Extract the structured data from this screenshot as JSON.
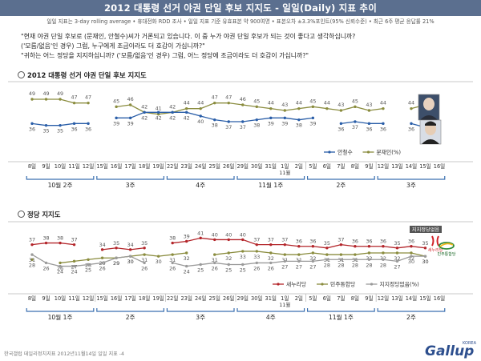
{
  "header": {
    "title": "2012 대통령 선거 야권 단일 후보 지지도 - 일일(Daily) 지표 추이",
    "subtitle": "일일 지표는 3-day rolling average  •  휴대전화 RDD 조사  •  일일 지표 기준 유효표본 약 900여명  •  표본오차 ±3.3%포인트(95% 신뢰수준)  •  최근 6주 평균 응답률 21%"
  },
  "questions": [
    "\"현재 야권 단일 후보로 (문재인, 안철수)씨가 거론되고 있습니다. 이 중 누가 야권 단일 후보가 되는 것이 좋다고 생각하십니까?",
    "('모름/없음'인 경우) 그럼, 누구에게 조금이라도 더 호감이 가십니까?\"",
    "\"귀하는 어느 정당을 지지하십니까? ('모름/없음'인 경우) 그럼, 어느 정당에 조금이라도 더 호감이 가십니까?\""
  ],
  "footer": {
    "text": "한국갤럽 데일리정치지표 2012년11월14일 일일 지표 -4"
  },
  "logo": {
    "text": "Gallup",
    "korea": "KOREA"
  },
  "colors": {
    "title_bg": "#5b6f8f",
    "blue": "#2a5ea8",
    "olive": "#8a8c3e",
    "red": "#b3252a",
    "gray_line": "#9a9a9a",
    "axis_blue": "#3a6fb0"
  },
  "icons": {
    "moon_photo": "candidate-moon-photo-icon",
    "ahn_photo": "candidate-ahn-photo-icon",
    "saenuri_logo": "saenuri-party-logo-icon",
    "democratic_logo": "democratic-united-party-logo-icon",
    "section_bullet": "circle-bullet-icon"
  },
  "chart_data": [
    {
      "type": "line",
      "title": "2012 대통령 선거 야권 단일 후보 지지도",
      "x": [
        "8일",
        "9일",
        "10일",
        "11일",
        "12일",
        "15일",
        "16일",
        "17일",
        "18일",
        "19일",
        "22일",
        "23일",
        "24일",
        "25일",
        "26일",
        "29일",
        "30일",
        "31일",
        "1일",
        "2일",
        "5일",
        "6일",
        "7일",
        "8일",
        "9일",
        "12일",
        "13일",
        "14일",
        "15일",
        "16일"
      ],
      "x_note": "11월",
      "x_note_under": "1일",
      "week_groups": [
        "10월 2주",
        "3주",
        "4주",
        "11월 1주",
        "2주",
        "3주"
      ],
      "week_spans": [
        5,
        5,
        5,
        5,
        5,
        5
      ],
      "series": [
        {
          "name": "문재인(%)",
          "color": "#8a8c3e",
          "values": [
            49,
            49,
            49,
            47,
            47,
            null,
            45,
            46,
            42,
            41,
            42,
            44,
            44,
            47,
            47,
            46,
            45,
            44,
            43,
            44,
            45,
            44,
            43,
            45,
            43,
            44,
            null,
            44,
            46,
            null
          ]
        },
        {
          "name": "안철수",
          "color": "#2a5ea8",
          "values": [
            36,
            35,
            35,
            36,
            36,
            null,
            39,
            39,
            42,
            42,
            42,
            42,
            40,
            38,
            37,
            37,
            38,
            39,
            39,
            38,
            39,
            null,
            36,
            37,
            36,
            36,
            null,
            36,
            34,
            null
          ]
        }
      ],
      "legend": [
        "안철수",
        "문재인(%)"
      ],
      "ylim": [
        25,
        55
      ]
    },
    {
      "type": "line",
      "title": "정당 지지도",
      "x": [
        "8일",
        "9일",
        "10일",
        "11일",
        "12일",
        "15일",
        "16일",
        "17일",
        "18일",
        "19일",
        "22일",
        "23일",
        "24일",
        "25일",
        "26일",
        "29일",
        "30일",
        "31일",
        "1일",
        "2일",
        "5일",
        "6일",
        "7일",
        "8일",
        "9일",
        "12일",
        "13일",
        "14일",
        "15일",
        "16일"
      ],
      "x_note": "11월",
      "x_note_under": "1일",
      "week_groups": [
        "10월 1주",
        "2주",
        "3주",
        "4주",
        "11월 1주",
        "2주"
      ],
      "week_spans": [
        5,
        5,
        5,
        5,
        5,
        5
      ],
      "series": [
        {
          "name": "새누리당",
          "color": "#b3252a",
          "values": [
            37,
            38,
            38,
            37,
            null,
            34,
            35,
            34,
            35,
            null,
            38,
            39,
            41,
            40,
            40,
            40,
            37,
            37,
            37,
            36,
            36,
            35,
            37,
            36,
            36,
            36,
            35,
            36,
            35,
            null
          ]
        },
        {
          "name": "민주통합당",
          "color": "#8a8c3e",
          "values": [
            28,
            null,
            26,
            27,
            28,
            29,
            29,
            30,
            31,
            30,
            31,
            32,
            null,
            31,
            32,
            33,
            33,
            32,
            31,
            31,
            32,
            31,
            31,
            31,
            32,
            32,
            32,
            32,
            30,
            null
          ]
        },
        {
          "name": "지지정당없음(%)",
          "color": "#9a9a9a",
          "values": [
            31,
            26,
            24,
            24,
            25,
            26,
            29,
            30,
            26,
            null,
            26,
            24,
            25,
            26,
            25,
            25,
            26,
            26,
            27,
            27,
            27,
            28,
            28,
            28,
            28,
            28,
            27,
            30,
            30,
            null
          ]
        }
      ],
      "end_label": "지지정당없음",
      "legend": [
        "새누리당",
        "민주통합당",
        "지지정당없음(%)"
      ],
      "logo_labels": {
        "saenuri": "새누리당",
        "democratic": "민주통합당"
      },
      "ylim": [
        18,
        46
      ]
    }
  ]
}
